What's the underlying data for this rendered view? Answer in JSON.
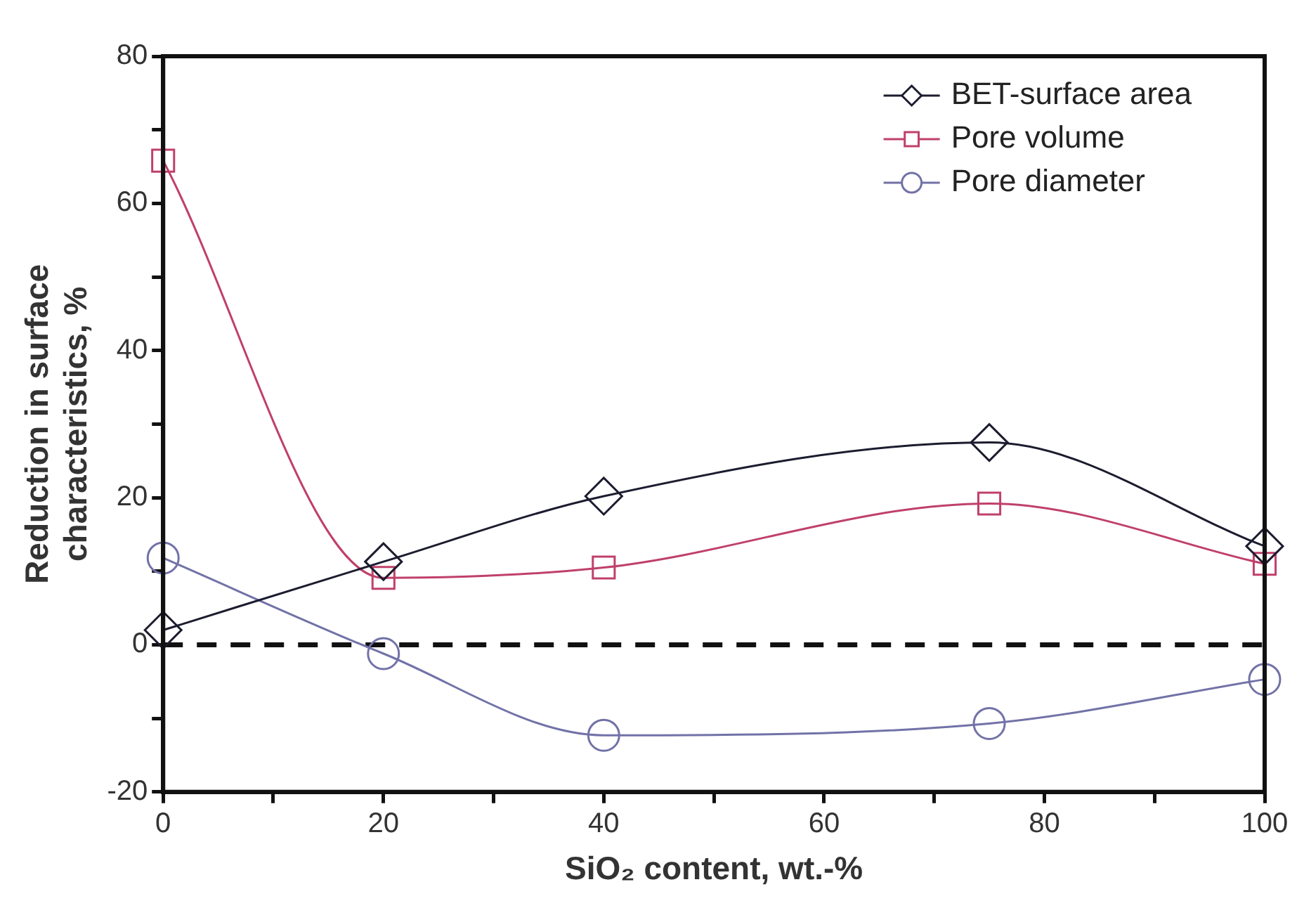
{
  "chart_data": {
    "type": "line",
    "xlabel": "SiO₂ content, wt.-%",
    "ylabel": "Reduction in surface characteristics, %",
    "x": [
      0,
      20,
      40,
      75,
      100
    ],
    "series": [
      {
        "name": "BET-surface area",
        "color": "#1c1c30",
        "marker": "diamond",
        "values": [
          2,
          11.3,
          20.2,
          27.5,
          13.4
        ]
      },
      {
        "name": "Pore volume",
        "color": "#c0406a",
        "marker": "square",
        "values": [
          65.8,
          9.1,
          10.5,
          19.2,
          11
        ]
      },
      {
        "name": "Pore diameter",
        "color": "#7272a8",
        "marker": "circle",
        "values": [
          11.8,
          -1.2,
          -12.3,
          -10.7,
          -4.7
        ]
      }
    ],
    "xlim": [
      0,
      100
    ],
    "xticks": [
      0,
      {
        "value": 10,
        "label": null
      },
      20,
      {
        "value": 30,
        "label": null
      },
      40,
      {
        "value": 50,
        "label": null
      },
      60,
      {
        "value": 70,
        "label": null
      },
      80,
      {
        "value": 90,
        "label": null
      },
      100
    ],
    "ylim": [
      -20,
      80
    ],
    "yticks": [
      -20,
      {
        "value": -10,
        "label": null
      },
      0,
      {
        "value": 10,
        "label": null
      },
      20,
      {
        "value": 30,
        "label": null
      },
      40,
      {
        "value": 50,
        "label": null
      },
      60,
      {
        "value": 70,
        "label": null
      },
      80
    ],
    "ref_lines": [
      {
        "axis": "y",
        "value": 0,
        "color": "#111111",
        "line_style": "dashed"
      }
    ],
    "grid": false,
    "legend": "top right"
  }
}
